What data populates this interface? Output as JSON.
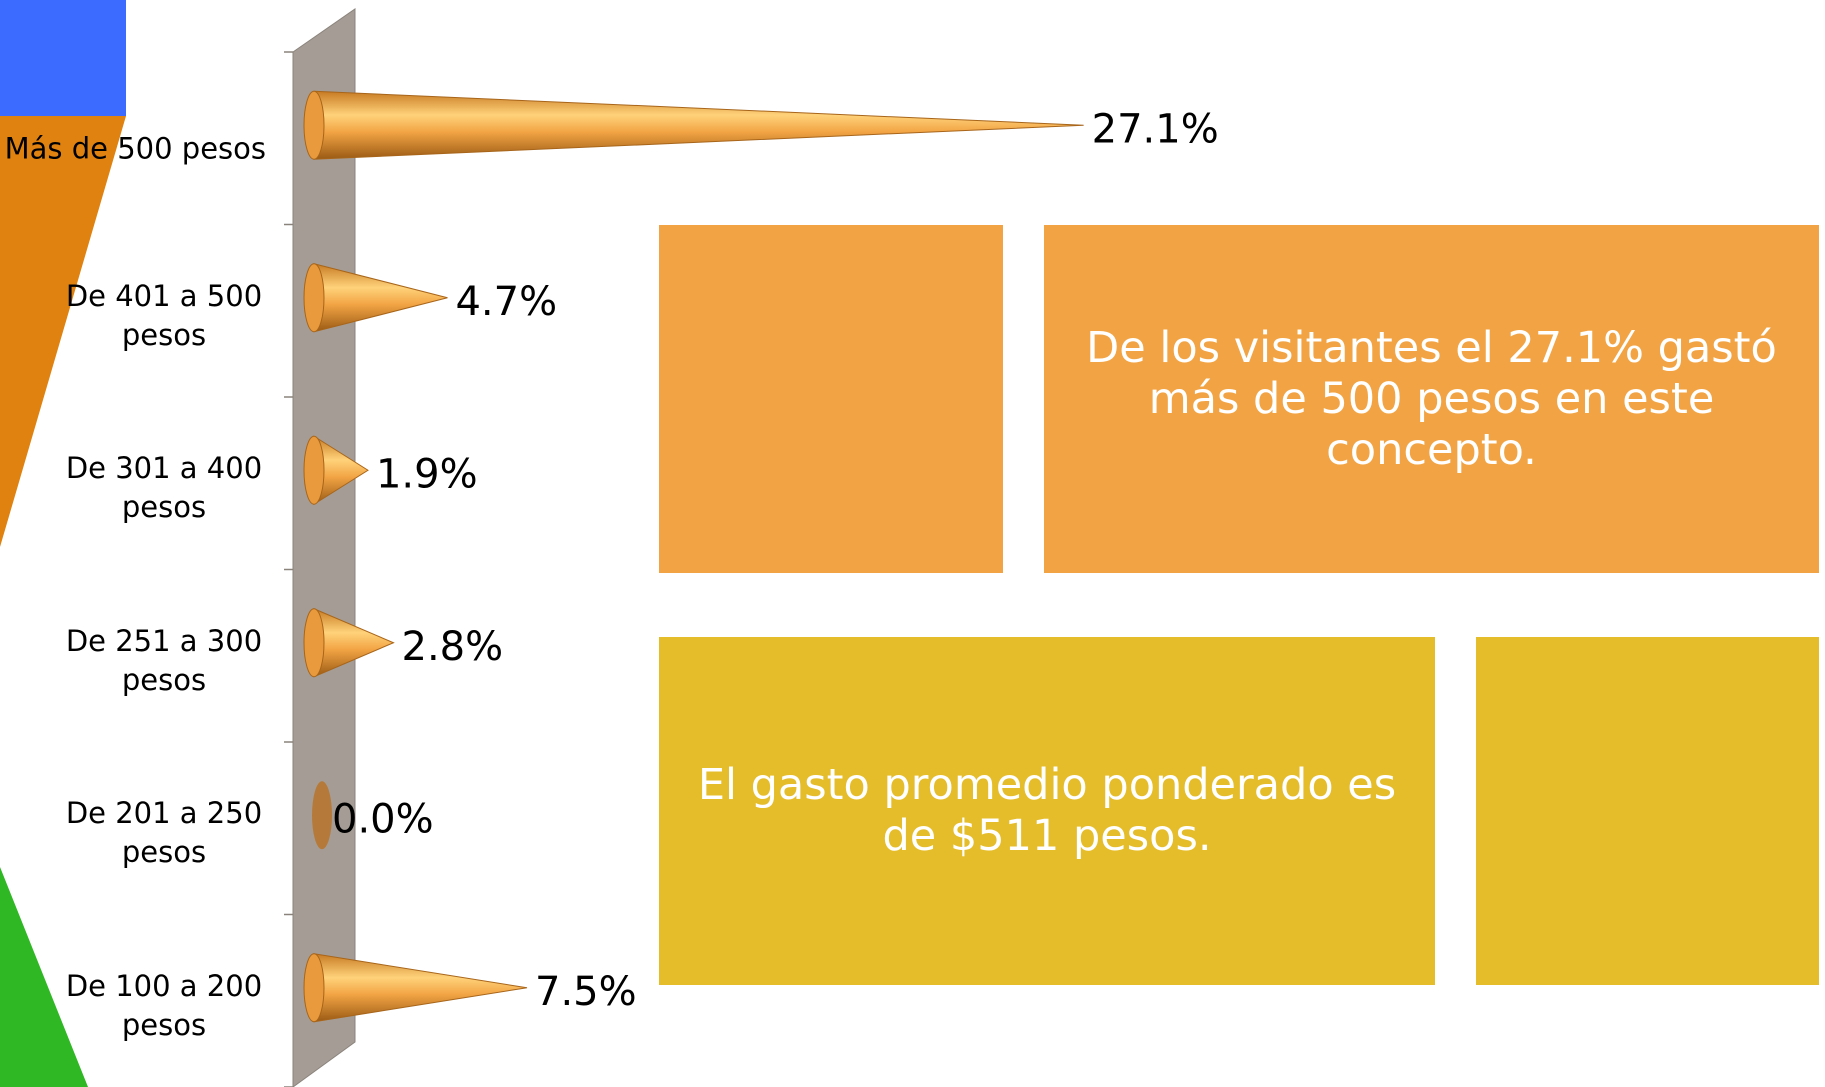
{
  "chart_data": {
    "type": "bar",
    "categories": [
      "Más de 500 pesos",
      "De 401 a 500 pesos",
      "De 301 a 400 pesos",
      "De 251 a 300 pesos",
      "De 201 a 250 pesos",
      "De 100 a 200 pesos"
    ],
    "values": [
      27.1,
      4.7,
      1.9,
      2.8,
      0,
      7.5
    ],
    "value_labels": [
      "27.1%",
      "4.7%",
      "1.9%",
      "2.8%",
      "0.0%",
      "7.5%"
    ],
    "color": "#f0a040",
    "xlim": [
      0,
      30
    ],
    "annotations": [
      "De los visitantes el 27.1% gastó más de 500 pesos en este concepto.",
      "El gasto promedio ponderado es de $511 pesos."
    ]
  }
}
